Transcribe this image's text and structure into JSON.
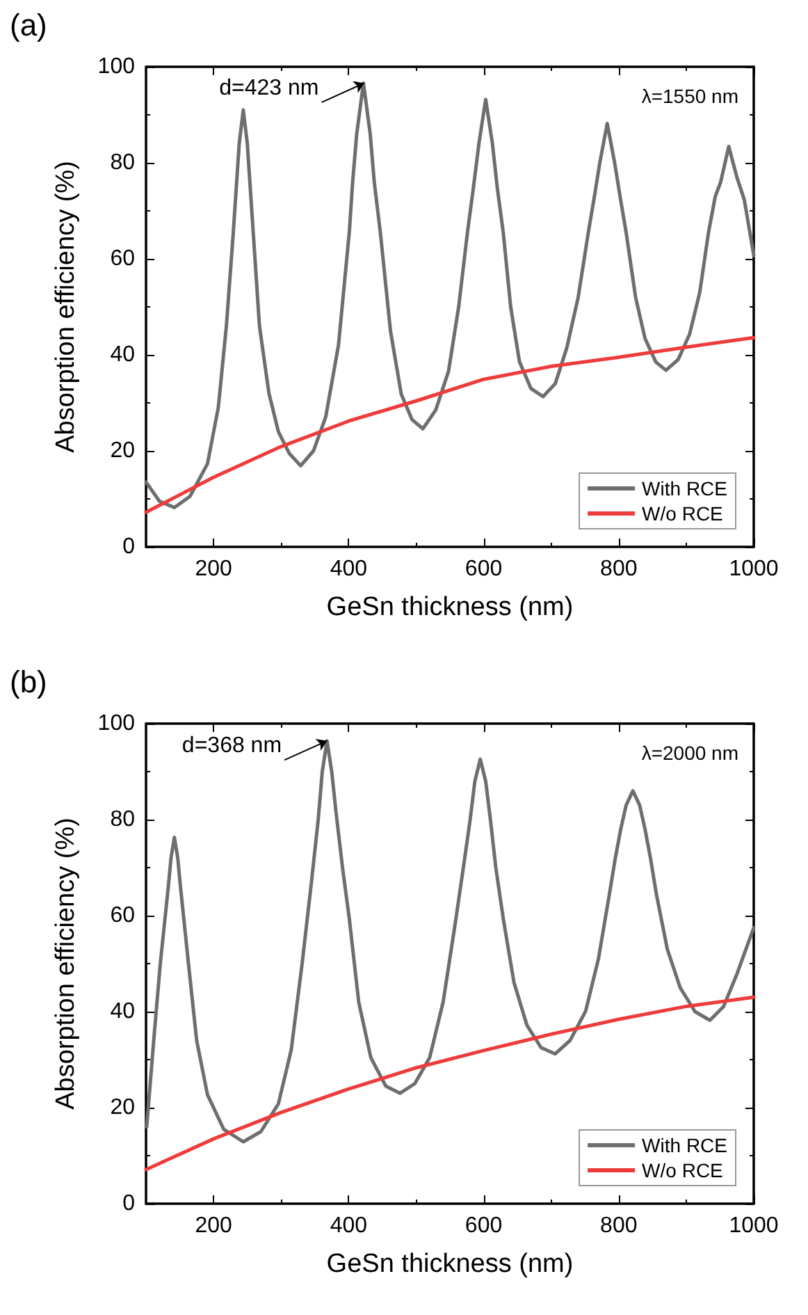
{
  "chart_data": [
    {
      "type": "line",
      "title": "(a)",
      "xlabel": "GeSn thickness (nm)",
      "ylabel": "Absorption efficiency (%)",
      "xlim": [
        100,
        1000
      ],
      "xticks": [
        200,
        400,
        600,
        800,
        1000
      ],
      "ylim": [
        0,
        100
      ],
      "yticks": [
        0,
        20,
        40,
        60,
        80,
        100
      ],
      "legend": "bottom right",
      "marker": "none",
      "line_style": "solid",
      "grid": false,
      "annotations": [
        "λ=1550 nm",
        {
          "text": "d=423 nm",
          "x": 423,
          "y": 96.6
        }
      ],
      "series": [
        {
          "name": "With RCE",
          "color": "#6e6e6e",
          "x": [
            100,
            120,
            142,
            165,
            191,
            207,
            219,
            229,
            238,
            244,
            250,
            259,
            268,
            282,
            296,
            312,
            329,
            348,
            366,
            385,
            401,
            406,
            412,
            422,
            432,
            438,
            447,
            462,
            478,
            494,
            510,
            529,
            548,
            563,
            576,
            585,
            593,
            603,
            613,
            620,
            629,
            640,
            653,
            670,
            688,
            706,
            723,
            740,
            755,
            764,
            772,
            783,
            794,
            802,
            811,
            825,
            839,
            855,
            870,
            888,
            905,
            920,
            933,
            943,
            951,
            963,
            975,
            986,
            1000
          ],
          "values": [
            13.5,
            9.5,
            8.2,
            10.5,
            17.3,
            29,
            46,
            65,
            84,
            91,
            84,
            65,
            46,
            32,
            24,
            19.5,
            16.9,
            20,
            27,
            42,
            65.5,
            76,
            86,
            96.6,
            86,
            76,
            65.5,
            45,
            31.8,
            26.5,
            24.6,
            28.5,
            36.6,
            50,
            65.5,
            75,
            84,
            93.2,
            84,
            75,
            65.5,
            50,
            38.6,
            33,
            31.3,
            34,
            41.4,
            52,
            65.5,
            73,
            80,
            88.2,
            80,
            73,
            65.5,
            52,
            43.4,
            38.5,
            36.8,
            39,
            44.3,
            53,
            65.5,
            73,
            76,
            83.4,
            77,
            72.3,
            60.7
          ]
        },
        {
          "name": "W/o RCE",
          "color": "#ee3b3b",
          "x": [
            100,
            200,
            300,
            400,
            500,
            600,
            700,
            800,
            900,
            1000
          ],
          "values": [
            7.2,
            14.5,
            20.9,
            26.2,
            30.4,
            34.9,
            37.6,
            39.5,
            41.6,
            43.6
          ]
        }
      ]
    },
    {
      "type": "line",
      "title": "(b)",
      "xlabel": "GeSn thickness (nm)",
      "ylabel": "Absorption efficiency (%)",
      "xlim": [
        100,
        1000
      ],
      "xticks": [
        200,
        400,
        600,
        800,
        1000
      ],
      "ylim": [
        0,
        100
      ],
      "yticks": [
        0,
        20,
        40,
        60,
        80,
        100
      ],
      "legend": "bottom right",
      "marker": "none",
      "line_style": "solid",
      "grid": false,
      "annotations": [
        "λ=2000 nm",
        {
          "text": "d=368 nm",
          "x": 368,
          "y": 96.4
        }
      ],
      "series": [
        {
          "name": "With RCE",
          "color": "#6e6e6e",
          "x": [
            101,
            112,
            121,
            133,
            137,
            142,
            147,
            151,
            163,
            175,
            191,
            215,
            244,
            270,
            296,
            315,
            331,
            345,
            355,
            361,
            368,
            375,
            381,
            391,
            401,
            415,
            433,
            455,
            476,
            498,
            520,
            540,
            559,
            572,
            580,
            587,
            595,
            603,
            610,
            618,
            629,
            645,
            664,
            685,
            706,
            728,
            751,
            770,
            786,
            795,
            803,
            811,
            821,
            831,
            839,
            847,
            856,
            872,
            891,
            913,
            935,
            955,
            975,
            1000
          ],
          "values": [
            16,
            35,
            49.8,
            66,
            72,
            76.3,
            72,
            66,
            49.8,
            34,
            22.7,
            15.5,
            12.9,
            15,
            20.8,
            32,
            49.8,
            67,
            80,
            90,
            96.4,
            90,
            82,
            70,
            59.4,
            42,
            30.4,
            24.5,
            23,
            25,
            30.4,
            42,
            59.4,
            72,
            80,
            88,
            92.6,
            88,
            80,
            70,
            59.4,
            46,
            37.2,
            32.5,
            31.2,
            34,
            40.1,
            51,
            64.3,
            72,
            78,
            83,
            86,
            83,
            78,
            72,
            64.3,
            53,
            45,
            40,
            38.2,
            41,
            47.8,
            57.5
          ]
        },
        {
          "name": "W/o RCE",
          "color": "#ee3b3b",
          "x": [
            100,
            200,
            300,
            400,
            500,
            600,
            700,
            800,
            900,
            1000
          ],
          "values": [
            7.1,
            13.5,
            19,
            23.9,
            28.3,
            31.9,
            35.3,
            38.4,
            41.1,
            43
          ]
        }
      ]
    }
  ]
}
